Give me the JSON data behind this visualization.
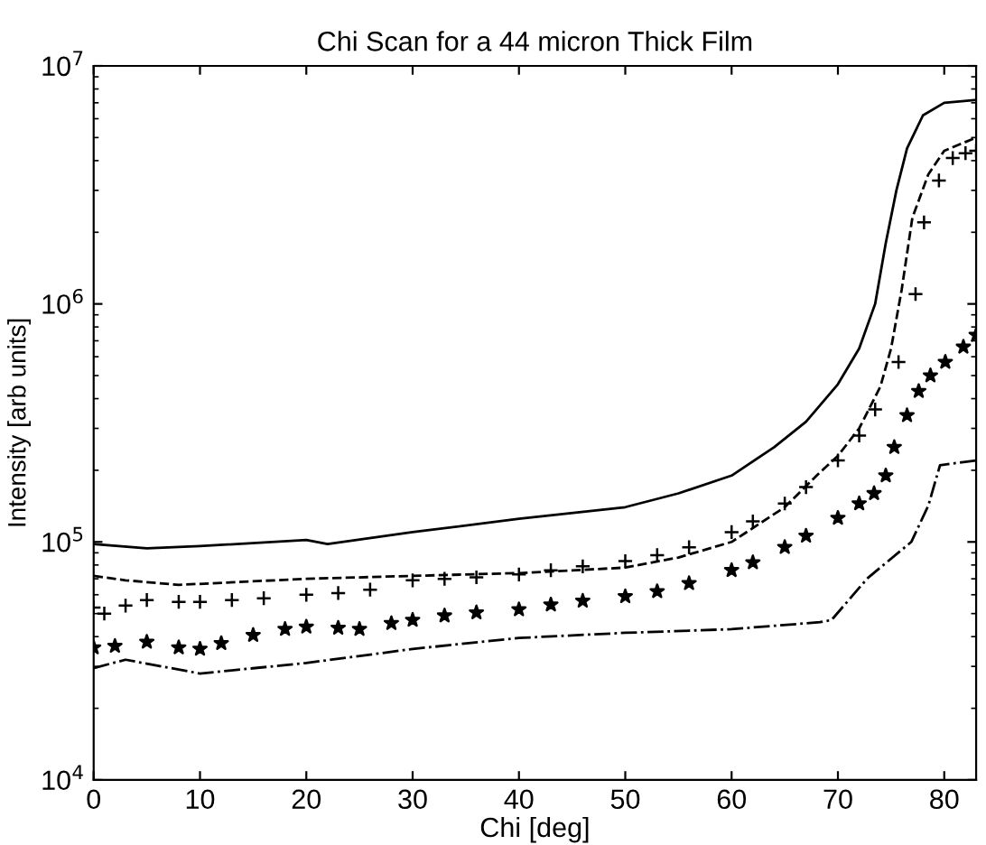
{
  "chart_data": {
    "type": "line",
    "title": "Chi Scan for a 44 micron Thick Film",
    "xlabel": "Chi [deg]",
    "ylabel": "Intensity [arb units]",
    "log": "y",
    "xlim": [
      0,
      83
    ],
    "xticks": [
      0,
      10,
      20,
      30,
      40,
      50,
      60,
      70,
      80
    ],
    "ylim": [
      10000,
      10000000
    ],
    "yticks": [
      {
        "value": 10000,
        "label": "10$^{4}$"
      },
      {
        "value": 100000,
        "label": "10$^{5}$"
      },
      {
        "value": 1000000,
        "label": "10$^{6}$"
      },
      {
        "value": 10000000,
        "label": "10$^{7}$"
      }
    ],
    "grid": false,
    "series": [
      {
        "color": "#000000",
        "line_style": "solid",
        "x": [
          0,
          5,
          10,
          20,
          22,
          30,
          40,
          50,
          55,
          60,
          64,
          67,
          70,
          72,
          73.5,
          74.5,
          75.5,
          76.5,
          78,
          80,
          83
        ],
        "values": [
          98000,
          94000,
          96000,
          102000,
          98000,
          110000,
          125000,
          140000,
          160000,
          190000,
          250000,
          320000,
          460000,
          650000,
          1000000,
          1800000,
          3000000,
          4500000,
          6200000,
          7000000,
          7200000
        ]
      },
      {
        "color": "#000000",
        "line_style": "dashed",
        "x": [
          0,
          3,
          8,
          20,
          30,
          40,
          50,
          55,
          60,
          65,
          68,
          70,
          72,
          74,
          75,
          76,
          77,
          78.5,
          80,
          83
        ],
        "values": [
          72000,
          69000,
          66000,
          70000,
          72000,
          74000,
          78000,
          86000,
          100000,
          140000,
          190000,
          230000,
          300000,
          450000,
          650000,
          1150000,
          2300000,
          3500000,
          4400000,
          5000000
        ]
      },
      {
        "type": "scatter",
        "color": "#000000",
        "marker": "cross",
        "x": [
          0,
          1,
          3,
          5,
          8,
          10,
          13,
          16,
          20,
          23,
          26,
          30,
          33,
          36,
          40,
          43,
          46,
          50,
          53,
          56,
          60,
          62,
          65,
          67,
          70,
          72,
          73.5,
          75.7,
          77.3,
          78.1,
          79.5,
          80.8,
          82,
          83
        ],
        "values": [
          53000,
          50000,
          54000,
          57000,
          56000,
          56000,
          57000,
          58000,
          60000,
          61000,
          63000,
          69000,
          70000,
          71000,
          73000,
          76000,
          79000,
          83000,
          88000,
          95000,
          110000,
          122000,
          145000,
          170000,
          220000,
          280000,
          360000,
          570000,
          1100000,
          2200000,
          3300000,
          4100000,
          4300000,
          4400000
        ]
      },
      {
        "type": "scatter",
        "color": "#000000",
        "marker": "star",
        "x": [
          0,
          2,
          5,
          8,
          10,
          12,
          15,
          18,
          20,
          23,
          25,
          28,
          30,
          33,
          36,
          40,
          43,
          46,
          50,
          53,
          56,
          60,
          62,
          65,
          67,
          70,
          72,
          73.4,
          74.5,
          75.3,
          76.5,
          77.6,
          78.7,
          80.1,
          81.8,
          83
        ],
        "values": [
          36000,
          36500,
          38000,
          36000,
          35500,
          37500,
          40600,
          43000,
          44000,
          43500,
          43000,
          45500,
          47000,
          49000,
          50500,
          52000,
          54500,
          56500,
          59000,
          62000,
          67000,
          76000,
          82000,
          95000,
          106000,
          126000,
          145000,
          160000,
          190000,
          250000,
          340000,
          430000,
          500000,
          570000,
          660000,
          740000
        ]
      },
      {
        "color": "#000000",
        "line_style": "dashdot",
        "x": [
          0,
          3,
          10,
          20,
          30,
          40,
          50,
          60,
          68.3,
          69.4,
          72.8,
          76.9,
          78.5,
          79.6,
          81.3,
          83
        ],
        "values": [
          29500,
          32000,
          28000,
          31000,
          35500,
          39500,
          41500,
          43000,
          46000,
          47000,
          70500,
          100000,
          142000,
          210000,
          215000,
          220000
        ]
      }
    ]
  }
}
